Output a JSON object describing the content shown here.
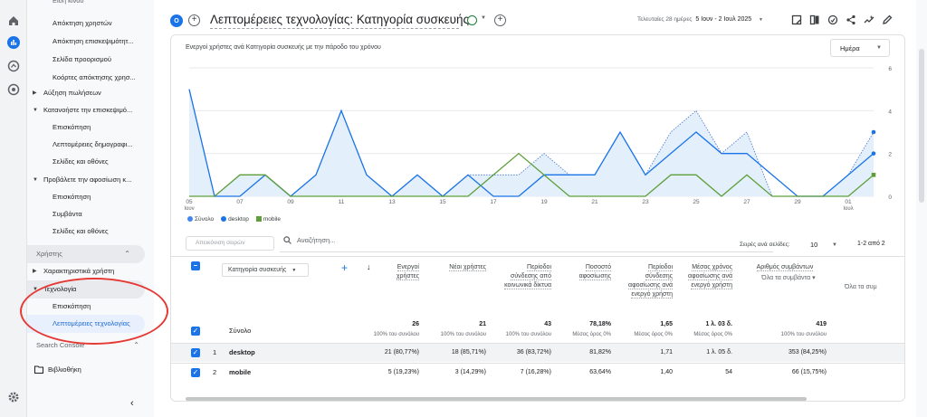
{
  "sidebar": {
    "items": [
      {
        "label": "Απόκτηση χρηστών"
      },
      {
        "label": "Απόκτηση επισκεψιμότητ..."
      },
      {
        "label": "Σελίδα προορισμού"
      },
      {
        "label": "Κοόρτες απόκτησης χρησ..."
      },
      {
        "label": "Αύξηση πωλήσεων"
      },
      {
        "label": "Κατανοήστε την επισκεψιμό..."
      },
      {
        "label": "Επισκόπηση"
      },
      {
        "label": "Λεπτομέρειες δημογραφι..."
      },
      {
        "label": "Σελίδες και οθόνες"
      },
      {
        "label": "Προβάλετε την αφοσίωση κ..."
      },
      {
        "label": "Επισκόπηση"
      },
      {
        "label": "Συμβάντα"
      },
      {
        "label": "Σελίδες και οθόνες"
      },
      {
        "label": "Χαρακτηριστικά χρήστη"
      },
      {
        "label": "Τεχνολογία"
      },
      {
        "label": "Επισκόπηση"
      },
      {
        "label": "Λεπτομέρειες τεχνολογίας"
      }
    ],
    "section_user": "Χρήστης",
    "section_search_console": "Search Console",
    "library": "Βιβλιοθήκη"
  },
  "header": {
    "badge": "O",
    "title": "Λεπτομέρειες τεχνολογίας: Κατηγορία συσκευής",
    "date_prefix": "Τελευταίες 28 ημέρες",
    "date_range": "5 Ιουν - 2 Ιουλ 2025",
    "plus": "+"
  },
  "chart": {
    "title": "Ενεργοί χρήστες ανά Κατηγορία συσκευής με την πάροδο του χρόνου",
    "granularity": "Ημέρα",
    "legend": [
      "Σύνολο",
      "desktop",
      "mobile"
    ],
    "colors": {
      "total": "#9ab7e6",
      "desktop": "#1a73e8",
      "mobile": "#5e9f3a",
      "fill": "#e3f0fb"
    }
  },
  "chart_data": {
    "type": "line",
    "x_tick_labels": [
      "05 Ιουν",
      "07",
      "09",
      "11",
      "13",
      "15",
      "17",
      "19",
      "21",
      "23",
      "25",
      "27",
      "29",
      "01 Ιουλ"
    ],
    "x": [
      "05",
      "06",
      "07",
      "08",
      "09",
      "10",
      "11",
      "12",
      "13",
      "14",
      "15",
      "16",
      "17",
      "18",
      "19",
      "20",
      "21",
      "22",
      "23",
      "24",
      "25",
      "26",
      "27",
      "28",
      "29",
      "30",
      "01",
      "02"
    ],
    "ylim": [
      0,
      6
    ],
    "y_ticks": [
      0,
      2,
      4,
      6
    ],
    "series": [
      {
        "name": "Σύνολο",
        "values": [
          5,
          0,
          1,
          1,
          0,
          1,
          4,
          1,
          0,
          1,
          0,
          1,
          1,
          1,
          2,
          1,
          1,
          3,
          1,
          3,
          4,
          2,
          3,
          0,
          0,
          0,
          1,
          3
        ]
      },
      {
        "name": "desktop",
        "values": [
          5,
          0,
          0,
          1,
          0,
          1,
          4,
          1,
          0,
          1,
          0,
          1,
          0,
          0,
          1,
          1,
          1,
          3,
          1,
          2,
          3,
          2,
          2,
          1,
          0,
          0,
          1,
          2
        ]
      },
      {
        "name": "mobile",
        "values": [
          0,
          0,
          1,
          1,
          0,
          0,
          0,
          0,
          0,
          0,
          0,
          0,
          1,
          2,
          1,
          0,
          0,
          0,
          0,
          1,
          1,
          0,
          1,
          0,
          0,
          0,
          0,
          1
        ]
      }
    ]
  },
  "table": {
    "show_rows_label": "Απεικόνιση σειρών",
    "search_placeholder": "Αναζήτηση...",
    "rows_per_page_label": "Σειρές ανά σελίδες:",
    "rows_per_page": "10",
    "pager": "1-2 από 2",
    "dimension": "Κατηγορία συσκευής",
    "headers": [
      "Ενεργοί χρήστες",
      "Νέοι χρήστες",
      "Περίοδοι σύνδεσης από κοινωνικά δίκτυα",
      "Ποσοστό αφοσίωσης",
      "Περίοδοι σύνδεσης αφοσίωσης ανά ενεργό χρήστη",
      "Μέσος χρόνος αφοσίωσης ανά ενεργό χρήστη",
      "Αριθμός συμβάντων",
      "Όλα τα συμβάντα",
      "Όλα τα συμ"
    ],
    "totals_label": "Σύνολο",
    "totals": [
      "26",
      "21",
      "43",
      "78,18%",
      "1,65",
      "1 λ. 03 δ.",
      "419"
    ],
    "totals_sub": [
      "100% του συνόλου",
      "100% του συνόλου",
      "100% του συνόλου",
      "Μέσος όρος 0%",
      "Μέσος όρος 0%",
      "Μέσος όρος 0%",
      "100% του συνόλου"
    ],
    "rows": [
      {
        "num": "1",
        "dim": "desktop",
        "cells": [
          "21 (80,77%)",
          "18 (85,71%)",
          "36 (83,72%)",
          "81,82%",
          "1,71",
          "1 λ. 05 δ.",
          "353 (84,25%)"
        ]
      },
      {
        "num": "2",
        "dim": "mobile",
        "cells": [
          "5 (19,23%)",
          "3 (14,29%)",
          "7 (16,28%)",
          "63,64%",
          "1,40",
          "54",
          "66 (15,75%)"
        ]
      }
    ]
  }
}
